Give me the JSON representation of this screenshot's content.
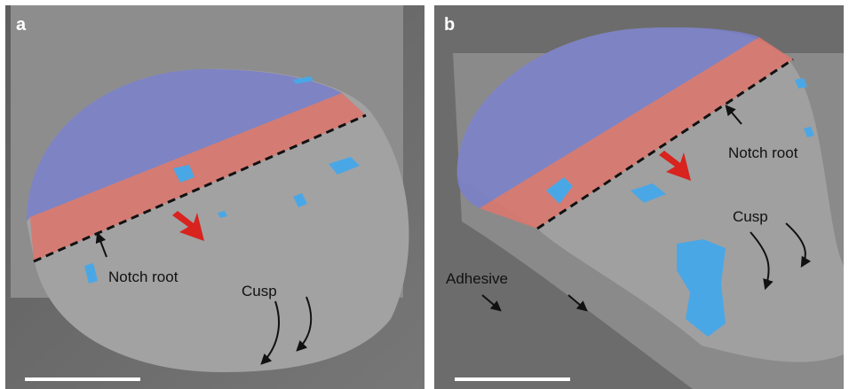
{
  "panels": [
    {
      "label": "a",
      "annotations": {
        "notch": "Notch root",
        "cusp": "Cusp"
      }
    },
    {
      "label": "b",
      "annotations": {
        "notch": "Notch root",
        "cusp": "Cusp",
        "adhesive": "Adhesive"
      }
    }
  ]
}
